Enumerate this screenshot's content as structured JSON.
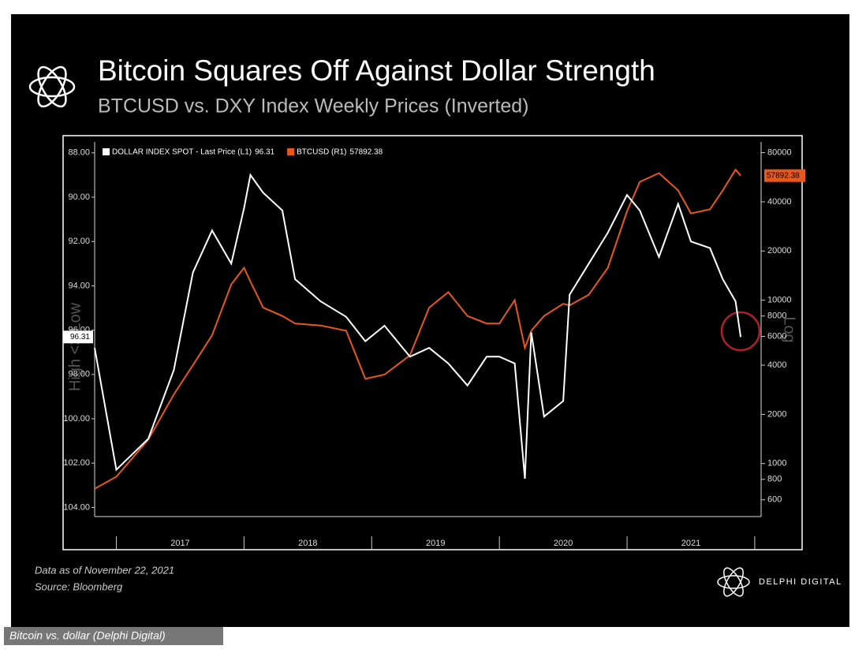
{
  "title": "Bitcoin Squares Off Against Dollar Strength",
  "subtitle": "BTCUSD vs. DXY Index Weekly Prices (Inverted)",
  "chart_data": {
    "type": "line",
    "y_axis_label": "High <> Low",
    "y2_axis_label": "Log",
    "y2_log": true,
    "x": [
      2016.83,
      2017.0,
      2017.25,
      2017.45,
      2017.6,
      2017.75,
      2017.9,
      2018.0,
      2018.05,
      2018.15,
      2018.3,
      2018.4,
      2018.6,
      2018.8,
      2018.95,
      2019.1,
      2019.3,
      2019.45,
      2019.6,
      2019.75,
      2019.9,
      2020.0,
      2020.12,
      2020.2,
      2020.25,
      2020.35,
      2020.5,
      2020.55,
      2020.7,
      2020.85,
      2021.0,
      2021.1,
      2021.25,
      2021.4,
      2021.5,
      2021.65,
      2021.75,
      2021.85,
      2021.89
    ],
    "xlim": [
      2016.83,
      2022.05
    ],
    "xticks": [
      {
        "value": 2017.5,
        "label": "2017"
      },
      {
        "value": 2018.5,
        "label": "2018"
      },
      {
        "value": 2019.5,
        "label": "2019"
      },
      {
        "value": 2020.5,
        "label": "2020"
      },
      {
        "value": 2021.5,
        "label": "2021"
      }
    ],
    "ylim": [
      104.2,
      87.65
    ],
    "yticks": [
      {
        "value": 88,
        "label": "88.00"
      },
      {
        "value": 90,
        "label": "90.00"
      },
      {
        "value": 92,
        "label": "92.00"
      },
      {
        "value": 94,
        "label": "94.00"
      },
      {
        "value": 96,
        "label": "96.00"
      },
      {
        "value": 98,
        "label": "98.00"
      },
      {
        "value": 100,
        "label": "100.00"
      },
      {
        "value": 102,
        "label": "102.00"
      },
      {
        "value": 104,
        "label": "104.00"
      }
    ],
    "y2lim": [
      506,
      89000
    ],
    "y2ticks": [
      600,
      800,
      1000,
      2000,
      4000,
      6000,
      8000,
      10000,
      20000,
      40000,
      80000
    ],
    "series": [
      {
        "name": "DOLLAR INDEX SPOT - Last Price (L1)",
        "color": "#ffffff",
        "values": [
          96.8,
          102.3,
          100.9,
          97.8,
          93.4,
          91.5,
          93.0,
          90.5,
          89.0,
          89.8,
          90.6,
          93.7,
          94.7,
          95.4,
          96.5,
          95.8,
          97.2,
          96.8,
          97.5,
          98.5,
          97.2,
          97.2,
          97.5,
          102.7,
          96.1,
          99.9,
          99.2,
          94.4,
          93.0,
          91.6,
          89.9,
          90.6,
          92.7,
          90.3,
          92.0,
          92.3,
          93.7,
          94.7,
          96.31
        ]
      },
      {
        "name": "BTCUSD (R1)",
        "color": "#e8581c",
        "axis": "y2",
        "values": [
          700,
          830,
          1400,
          2650,
          4000,
          6100,
          12500,
          15800,
          13000,
          9000,
          8000,
          7200,
          7000,
          6500,
          3300,
          3500,
          4600,
          9000,
          11200,
          8000,
          7200,
          7200,
          10000,
          5100,
          6500,
          8000,
          9500,
          9300,
          10800,
          15800,
          35000,
          53000,
          60000,
          47000,
          34000,
          36000,
          47000,
          63000,
          57892.38
        ]
      }
    ]
  },
  "footnote": "Data as of November 22, 2021",
  "source": "Source: Bloomberg",
  "brand": "DELPHI DIGITAL",
  "caption": "Bitcoin vs. dollar (Delphi Digital)"
}
